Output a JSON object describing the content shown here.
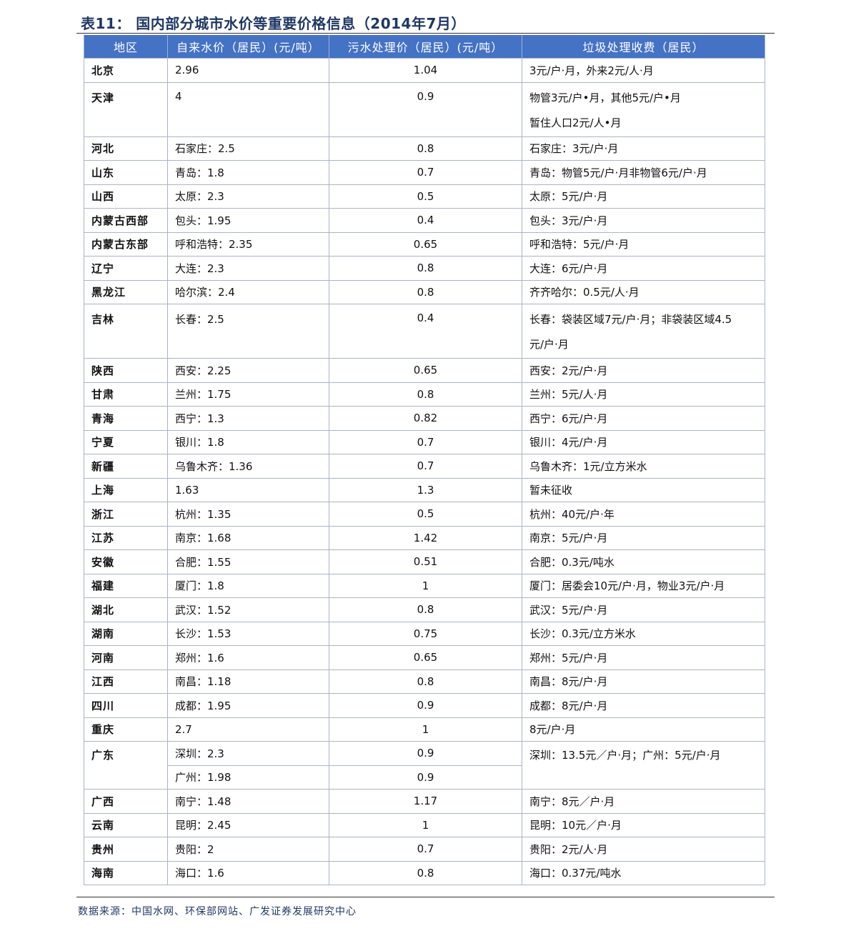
{
  "title": "表11：  国内部分城市水价等重要价格信息（2014年7月）",
  "headers": [
    "地区",
    "自来水价（居民）(元/吨）",
    "污水处理价（居民）(元/吨）",
    "垃圾处理收费（居民）"
  ],
  "rows": [
    {
      "region": "北京",
      "water": "2.96",
      "sewage": "1.04",
      "garbage": "3元/户·月，外来2元/人·月"
    },
    {
      "region": "天津",
      "water": "4",
      "sewage": "0.9",
      "garbage": "物管3元/户•月，其他5元/户•月",
      "garbage2": "暂住人口2元/人•月"
    },
    {
      "region": "河北",
      "water": "石家庄：2.5",
      "sewage": "0.8",
      "garbage": "石家庄：3元/户·月"
    },
    {
      "region": "山东",
      "water": "青岛：1.8",
      "sewage": "0.7",
      "garbage": "青岛：物管5元/户·月非物管6元/户·月"
    },
    {
      "region": "山西",
      "water": "太原：2.3",
      "sewage": "0.5",
      "garbage": "太原：5元/户·月"
    },
    {
      "region": "内蒙古西部",
      "water": "包头：1.95",
      "sewage": "0.4",
      "garbage": "包头：3元/户·月"
    },
    {
      "region": "内蒙古东部",
      "water": "呼和浩特：2.35",
      "sewage": "0.65",
      "garbage": "呼和浩特：5元/户·月"
    },
    {
      "region": "辽宁",
      "water": "大连：2.3",
      "sewage": "0.8",
      "garbage": "大连：6元/户·月"
    },
    {
      "region": "黑龙江",
      "water": "哈尔滨：2.4",
      "sewage": "0.8",
      "garbage": "齐齐哈尔：0.5元/人·月"
    },
    {
      "region": "吉林",
      "water": "长春：2.5",
      "sewage": "0.4",
      "garbage": "长春：袋装区域7元/户·月；非袋装区域4.5",
      "garbage2": "元/户·月"
    },
    {
      "region": "陕西",
      "water": "西安：2.25",
      "sewage": "0.65",
      "garbage": "西安：2元/户·月"
    },
    {
      "region": "甘肃",
      "water": "兰州：1.75",
      "sewage": "0.8",
      "garbage": "兰州：5元/人·月"
    },
    {
      "region": "青海",
      "water": "西宁：1.3",
      "sewage": "0.82",
      "garbage": "西宁：6元/户·月"
    },
    {
      "region": "宁夏",
      "water": "银川：1.8",
      "sewage": "0.7",
      "garbage": "银川：4元/户·月"
    },
    {
      "region": "新疆",
      "water": "乌鲁木齐：1.36",
      "sewage": "0.7",
      "garbage": "乌鲁木齐：1元/立方米水"
    },
    {
      "region": "上海",
      "water": "1.63",
      "sewage": "1.3",
      "garbage": "暂未征收"
    },
    {
      "region": "浙江",
      "water": "杭州：1.35",
      "sewage": "0.5",
      "garbage": "杭州：40元/户·年"
    },
    {
      "region": "江苏",
      "water": "南京：1.68",
      "sewage": "1.42",
      "garbage": "南京：5元/户·月"
    },
    {
      "region": "安徽",
      "water": "合肥：1.55",
      "sewage": "0.51",
      "garbage": "合肥：0.3元/吨水"
    },
    {
      "region": "福建",
      "water": "厦门：1.8",
      "sewage": "1",
      "garbage": "厦门：居委会10元/户·月，物业3元/户·月"
    },
    {
      "region": "湖北",
      "water": "武汉：1.52",
      "sewage": "0.8",
      "garbage": "武汉：5元/户·月"
    },
    {
      "region": "湖南",
      "water": "长沙：1.53",
      "sewage": "0.75",
      "garbage": "长沙：0.3元/立方米水"
    },
    {
      "region": "河南",
      "water": "郑州：1.6",
      "sewage": "0.65",
      "garbage": "郑州：5元/户·月"
    },
    {
      "region": "江西",
      "water": "南昌：1.18",
      "sewage": "0.8",
      "garbage": "南昌：8元/户·月"
    },
    {
      "region": "四川",
      "water": "成都：1.95",
      "sewage": "0.9",
      "garbage": "成都：8元/户·月"
    },
    {
      "region": "重庆",
      "water": "2.7",
      "sewage": "1",
      "garbage": "8元/户·月"
    }
  ],
  "guangdong": {
    "region": "广东",
    "water_a": "深圳：2.3",
    "sewage_a": "0.9",
    "water_b": "广州：1.98",
    "sewage_b": "0.9",
    "garbage": "深圳：13.5元／户·月；广州：5元/户·月"
  },
  "rows_tail": [
    {
      "region": "广西",
      "water": "南宁：1.48",
      "sewage": "1.17",
      "garbage": "南宁：8元／户·月"
    },
    {
      "region": "云南",
      "water": "昆明：2.45",
      "sewage": "1",
      "garbage": "昆明：10元／户·月"
    },
    {
      "region": "贵州",
      "water": "贵阳：2",
      "sewage": "0.7",
      "garbage": "贵阳：2元/人·月"
    },
    {
      "region": "海南",
      "water": "海口：1.6",
      "sewage": "0.8",
      "garbage": "海口：0.37元/吨水"
    }
  ],
  "source": "数据来源：中国水网、环保部网站、广发证券发展研究中心"
}
